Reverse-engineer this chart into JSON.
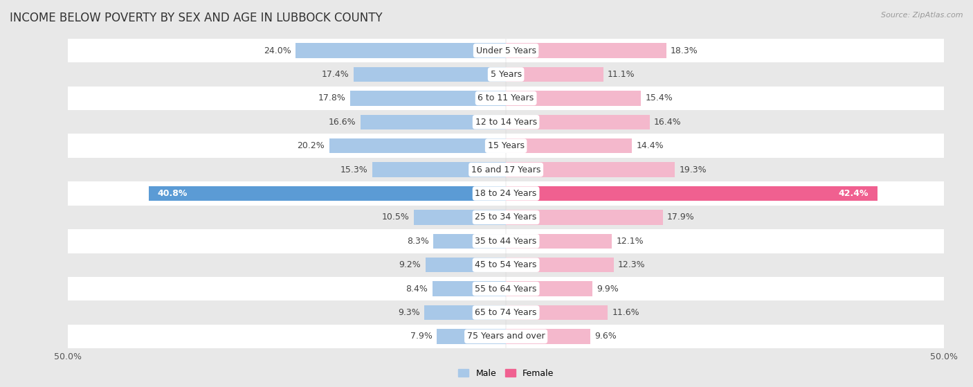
{
  "title": "INCOME BELOW POVERTY BY SEX AND AGE IN LUBBOCK COUNTY",
  "source": "Source: ZipAtlas.com",
  "categories": [
    "Under 5 Years",
    "5 Years",
    "6 to 11 Years",
    "12 to 14 Years",
    "15 Years",
    "16 and 17 Years",
    "18 to 24 Years",
    "25 to 34 Years",
    "35 to 44 Years",
    "45 to 54 Years",
    "55 to 64 Years",
    "65 to 74 Years",
    "75 Years and over"
  ],
  "male_values": [
    24.0,
    17.4,
    17.8,
    16.6,
    20.2,
    15.3,
    40.8,
    10.5,
    8.3,
    9.2,
    8.4,
    9.3,
    7.9
  ],
  "female_values": [
    18.3,
    11.1,
    15.4,
    16.4,
    14.4,
    19.3,
    42.4,
    17.9,
    12.1,
    12.3,
    9.9,
    11.6,
    9.6
  ],
  "male_color_normal": "#a8c8e8",
  "male_color_highlight": "#5b9bd5",
  "female_color_normal": "#f4b8cc",
  "female_color_highlight": "#f06090",
  "male_label": "Male",
  "female_label": "Female",
  "xlim": 50.0,
  "bg_color": "#e8e8e8",
  "row_colors": [
    "#ffffff",
    "#e8e8e8"
  ],
  "bar_height": 0.62,
  "title_fontsize": 12,
  "label_fontsize": 9,
  "cat_fontsize": 9,
  "tick_fontsize": 9,
  "source_fontsize": 8,
  "highlight_index": 6
}
